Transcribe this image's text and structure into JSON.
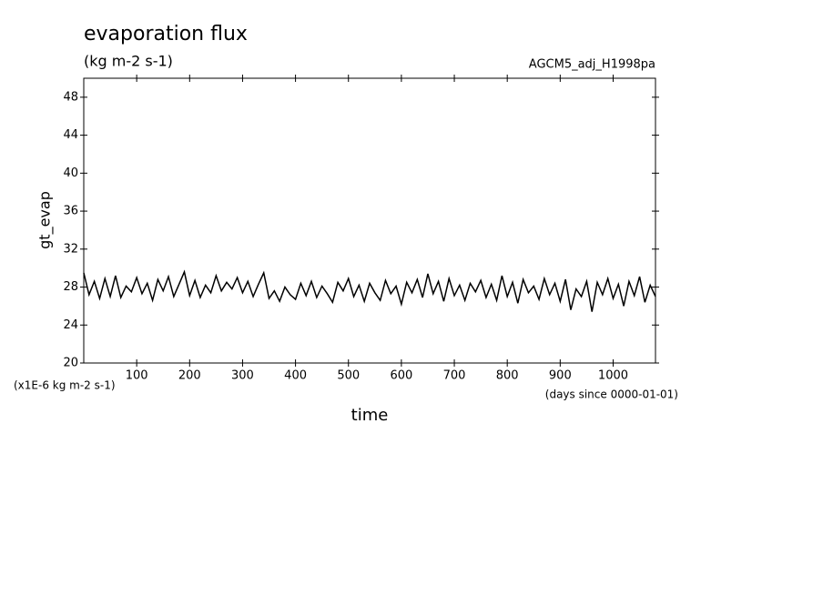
{
  "chart_data": {
    "type": "line",
    "title": "evaporation flux",
    "subtitle": "(kg m-2 s-1)",
    "run_label": "AGCM5_adj_H1998pa",
    "y_label": "gt_evap",
    "y_unit_note": "(x1E-6 kg m-2 s-1)",
    "x_label": "time",
    "x_unit_note": "(days since 0000-01-01)",
    "x": [
      0,
      10,
      20,
      30,
      40,
      50,
      60,
      70,
      80,
      90,
      100,
      110,
      120,
      130,
      140,
      150,
      160,
      170,
      180,
      190,
      200,
      210,
      220,
      230,
      240,
      250,
      260,
      270,
      280,
      290,
      300,
      310,
      320,
      330,
      340,
      350,
      360,
      370,
      380,
      390,
      400,
      410,
      420,
      430,
      440,
      450,
      460,
      470,
      480,
      490,
      500,
      510,
      520,
      530,
      540,
      550,
      560,
      570,
      580,
      590,
      600,
      610,
      620,
      630,
      640,
      650,
      660,
      670,
      680,
      690,
      700,
      710,
      720,
      730,
      740,
      750,
      760,
      770,
      780,
      790,
      800,
      810,
      820,
      830,
      840,
      850,
      860,
      870,
      880,
      890,
      900,
      910,
      920,
      930,
      940,
      950,
      960,
      970,
      980,
      990,
      1000,
      1010,
      1020,
      1030,
      1040,
      1050,
      1060,
      1070,
      1080
    ],
    "series": [
      {
        "name": "gt_evap",
        "color": "#000000",
        "values": [
          29.5,
          27.2,
          28.6,
          26.8,
          28.9,
          27.0,
          29.2,
          26.9,
          28.1,
          27.5,
          29.0,
          27.3,
          28.4,
          26.6,
          28.8,
          27.6,
          29.1,
          27.0,
          28.3,
          29.6,
          27.1,
          28.7,
          26.9,
          28.2,
          27.4,
          29.2,
          27.6,
          28.5,
          27.8,
          29.0,
          27.4,
          28.6,
          27.0,
          28.3,
          29.5,
          26.8,
          27.6,
          26.5,
          28.0,
          27.2,
          26.7,
          28.4,
          27.1,
          28.6,
          26.9,
          28.1,
          27.3,
          26.4,
          28.5,
          27.6,
          28.9,
          27.0,
          28.2,
          26.5,
          28.4,
          27.4,
          26.6,
          28.7,
          27.3,
          28.1,
          26.2,
          28.5,
          27.4,
          28.8,
          26.9,
          29.4,
          27.3,
          28.6,
          26.5,
          28.9,
          27.1,
          28.2,
          26.6,
          28.4,
          27.5,
          28.7,
          26.9,
          28.3,
          26.6,
          29.2,
          27.0,
          28.5,
          26.3,
          28.8,
          27.4,
          28.1,
          26.7,
          28.9,
          27.2,
          28.4,
          26.5,
          28.8,
          25.6,
          27.8,
          27.0,
          28.6,
          25.4,
          28.5,
          27.2,
          28.9,
          26.8,
          28.3,
          26.0,
          28.6,
          27.1,
          29.1,
          26.4,
          28.2,
          27.0
        ]
      }
    ],
    "xlim": [
      0,
      1080
    ],
    "xticks": [
      100,
      200,
      300,
      400,
      500,
      600,
      700,
      800,
      900,
      1000
    ],
    "ylim": [
      20,
      50
    ],
    "yticks": [
      20,
      24,
      28,
      32,
      36,
      40,
      44,
      48
    ]
  }
}
